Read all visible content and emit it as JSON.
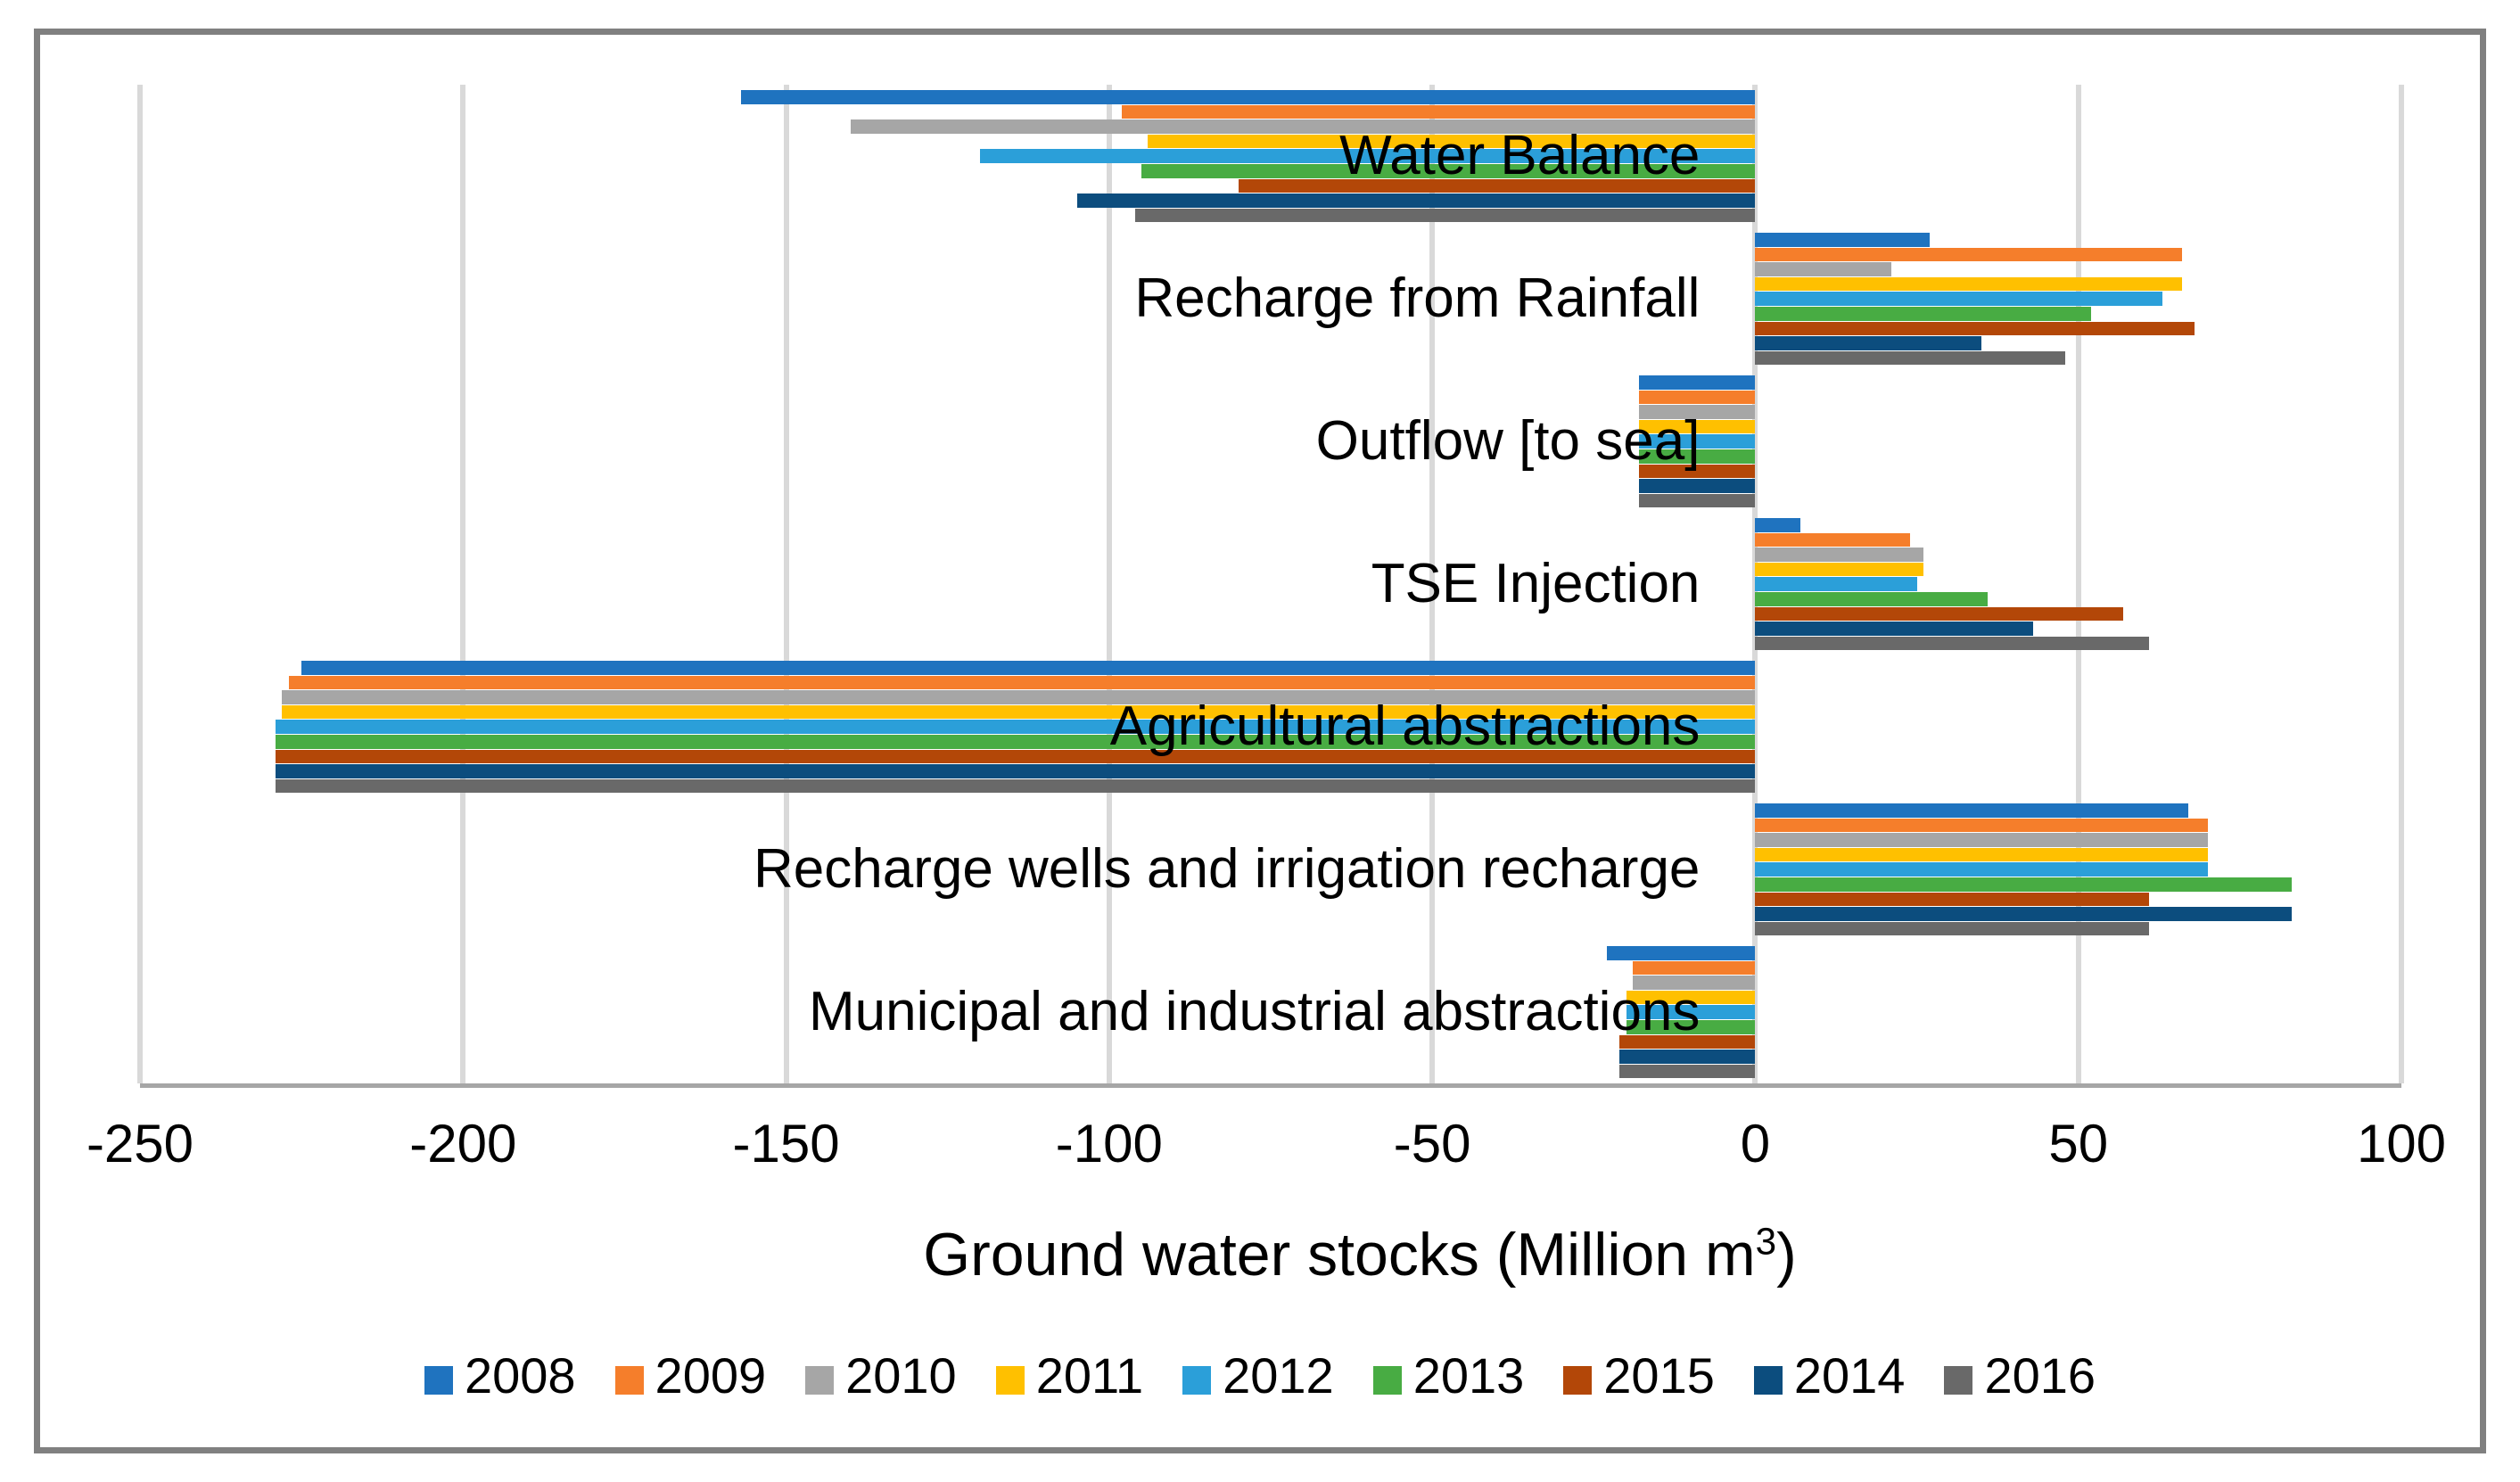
{
  "colors": {
    "frame_border": "#808080",
    "gridline": "#D9D9D9",
    "category_axis_line": "#A6A6A6",
    "text": "#000000"
  },
  "chart_data": {
    "type": "bar",
    "orientation": "horizontal",
    "title": "Ground water stocks (Million m³)",
    "title_parts": {
      "prefix": "Ground water stocks (Million m",
      "sup": "3",
      "suffix": ")"
    },
    "xlabel": "Ground water stocks (Million m³)",
    "ylabel": "",
    "xlim": [
      -250,
      100
    ],
    "xticks": [
      -250,
      -200,
      -150,
      -100,
      -50,
      0,
      50,
      100
    ],
    "grid": true,
    "legend_position": "bottom",
    "categories": [
      "Water Balance",
      "Recharge from Rainfall",
      "Outflow [to sea]",
      "TSE Injection",
      "Agricultural abstractions",
      "Recharge wells and irrigation recharge",
      "Municipal and industrial abstractions"
    ],
    "series": [
      {
        "name": "2008",
        "color": "#1F73BF",
        "values": [
          -157,
          27,
          -18,
          7,
          -225,
          67,
          -23
        ]
      },
      {
        "name": "2009",
        "color": "#F57E2B",
        "values": [
          -98,
          66,
          -18,
          24,
          -227,
          70,
          -19
        ]
      },
      {
        "name": "2010",
        "color": "#A6A6A6",
        "values": [
          -140,
          21,
          -18,
          26,
          -228,
          70,
          -19
        ]
      },
      {
        "name": "2011",
        "color": "#FFC000",
        "values": [
          -94,
          66,
          -18,
          26,
          -228,
          70,
          -20
        ]
      },
      {
        "name": "2012",
        "color": "#2B9FD9",
        "values": [
          -120,
          63,
          -18,
          25,
          -229,
          70,
          -20
        ]
      },
      {
        "name": "2013",
        "color": "#48AC43",
        "values": [
          -95,
          52,
          -18,
          36,
          -229,
          83,
          -20
        ]
      },
      {
        "name": "2015",
        "color": "#B34708",
        "values": [
          -80,
          68,
          -18,
          57,
          -229,
          61,
          -21
        ]
      },
      {
        "name": "2014",
        "color": "#0C4D7E",
        "values": [
          -105,
          35,
          -18,
          43,
          -229,
          83,
          -21
        ]
      },
      {
        "name": "2016",
        "color": "#696969",
        "values": [
          -96,
          48,
          -18,
          61,
          -229,
          61,
          -21
        ]
      }
    ]
  }
}
